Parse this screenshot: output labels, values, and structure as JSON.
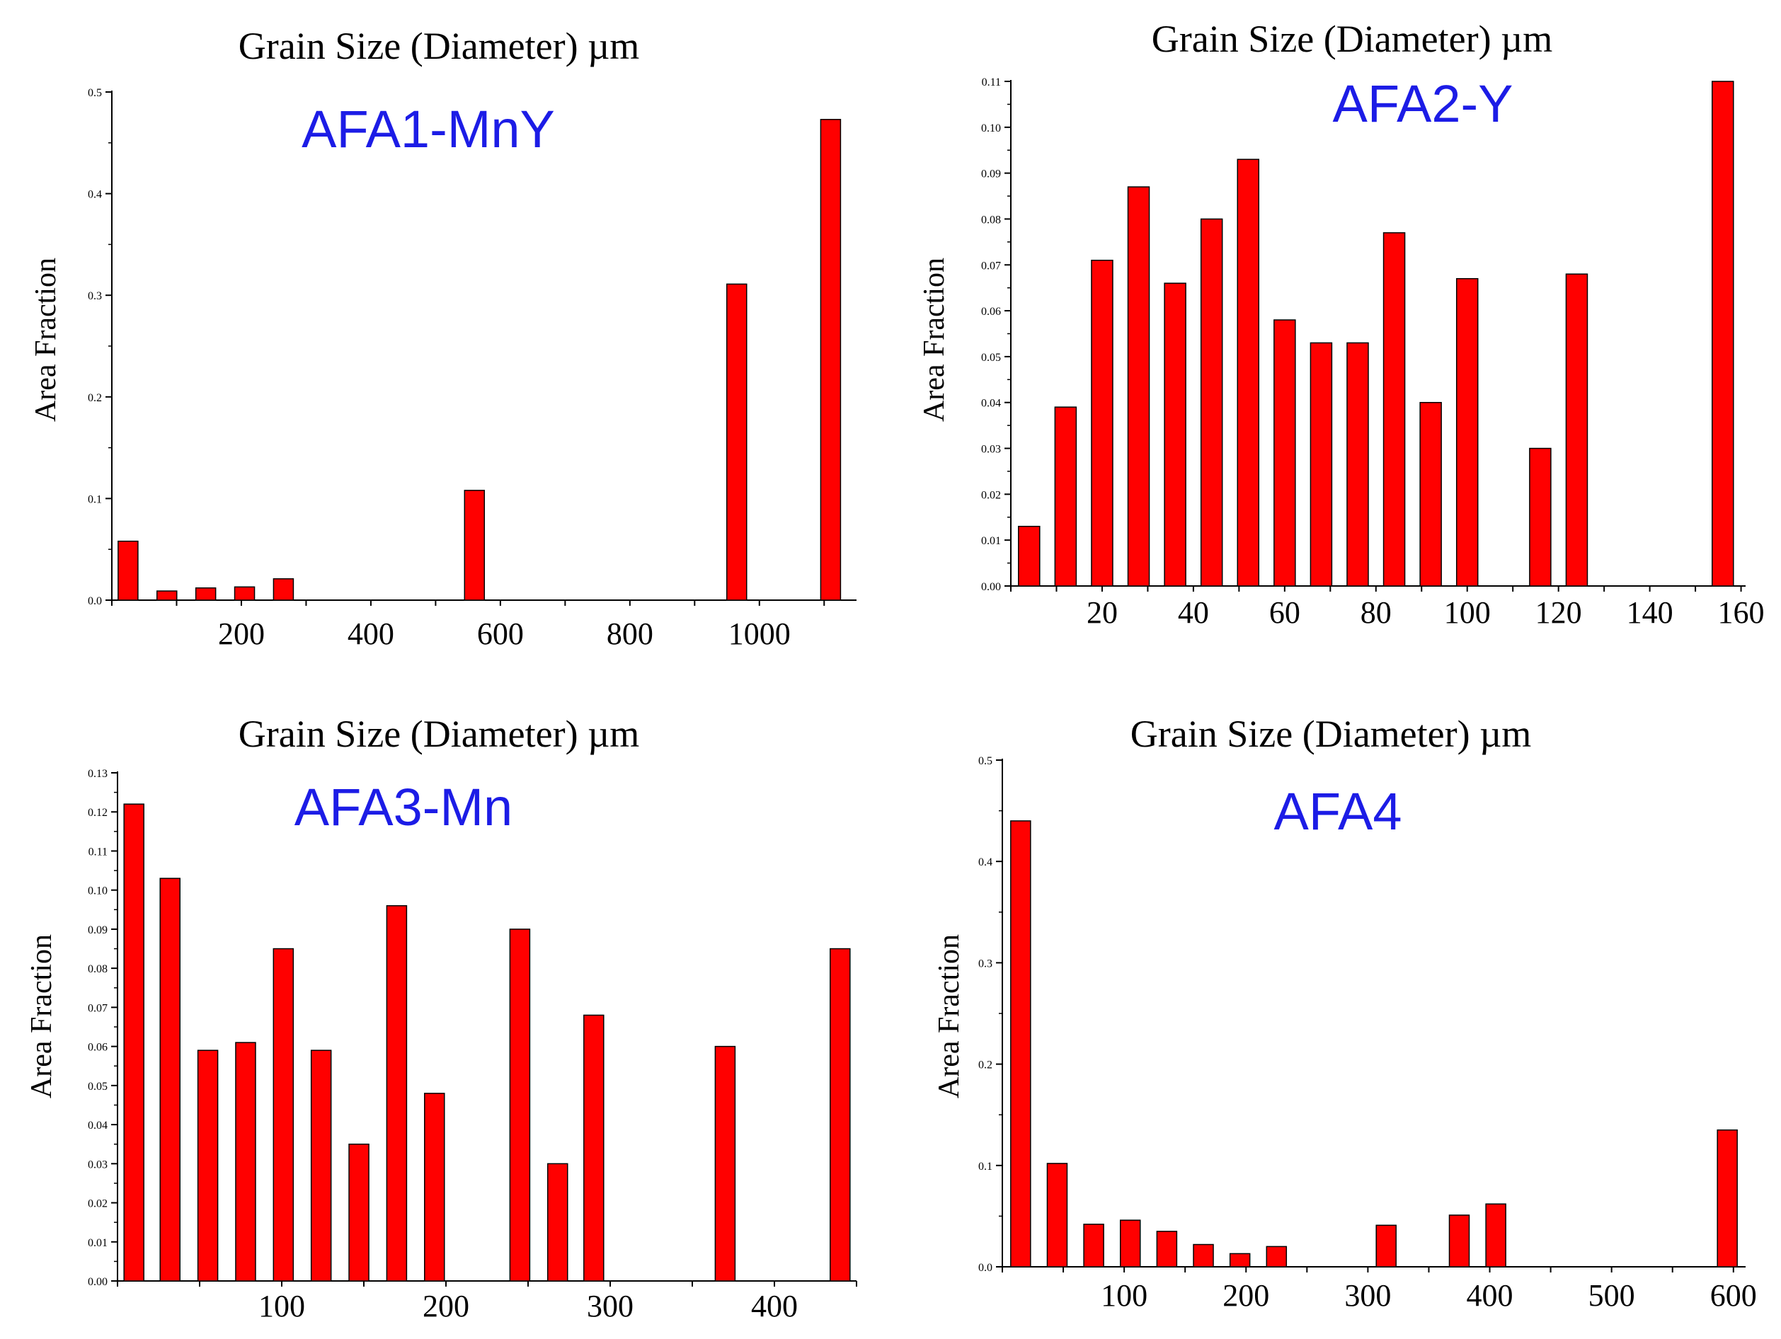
{
  "chart_data": [
    {
      "type": "bar",
      "sample": "AFA1-MnY",
      "title": "Grain Size (Diameter) µm",
      "xlabel": "Grain Size (Diameter) µm",
      "ylabel": "Area Fraction",
      "xlim": [
        0,
        1150
      ],
      "ylim": [
        0,
        0.5
      ],
      "x_ticks": [
        200,
        400,
        600,
        800,
        1000
      ],
      "y_ticks": [
        0.0,
        0.1,
        0.2,
        0.3,
        0.4,
        0.5
      ],
      "y_tick_labels": [
        "0.0",
        "0.1",
        "0.2",
        "0.3",
        "0.4",
        "0.5"
      ],
      "bar_color": "#ff0000",
      "x": [
        25,
        85,
        145,
        205,
        265,
        560,
        965,
        1110
      ],
      "values": [
        0.058,
        0.009,
        0.012,
        0.013,
        0.021,
        0.108,
        0.311,
        0.473
      ]
    },
    {
      "type": "bar",
      "sample": "AFA2-Y",
      "title": "Grain Size (Diameter) µm",
      "xlabel": "Grain Size (Diameter) µm",
      "ylabel": "Area Fraction",
      "xlim": [
        0,
        161
      ],
      "ylim": [
        0,
        0.11
      ],
      "x_ticks": [
        20,
        40,
        60,
        80,
        100,
        120,
        140,
        160
      ],
      "y_ticks": [
        0.0,
        0.01,
        0.02,
        0.03,
        0.04,
        0.05,
        0.06,
        0.07,
        0.08,
        0.09,
        0.1,
        0.11
      ],
      "y_tick_labels": [
        "0.00",
        "0.01",
        "0.02",
        "0.03",
        "0.04",
        "0.05",
        "0.06",
        "0.07",
        "0.08",
        "0.09",
        "0.10",
        "0.11"
      ],
      "bar_color": "#ff0000",
      "x": [
        4,
        12,
        20,
        28,
        36,
        44,
        52,
        60,
        68,
        76,
        84,
        92,
        100,
        116,
        124,
        156
      ],
      "values": [
        0.013,
        0.039,
        0.071,
        0.087,
        0.066,
        0.08,
        0.093,
        0.058,
        0.053,
        0.053,
        0.077,
        0.04,
        0.067,
        0.03,
        0.068,
        0.11
      ]
    },
    {
      "type": "bar",
      "sample": "AFA3-Mn",
      "title": "Grain Size (Diameter) µm",
      "xlabel": "Grain Size (Diameter) µm",
      "ylabel": "Area Fraction",
      "xlim": [
        0,
        450
      ],
      "ylim": [
        0,
        0.13
      ],
      "x_ticks": [
        100,
        200,
        300,
        400
      ],
      "y_ticks": [
        0.0,
        0.01,
        0.02,
        0.03,
        0.04,
        0.05,
        0.06,
        0.07,
        0.08,
        0.09,
        0.1,
        0.11,
        0.12,
        0.13
      ],
      "y_tick_labels": [
        "0.00",
        "0.01",
        "0.02",
        "0.03",
        "0.04",
        "0.05",
        "0.06",
        "0.07",
        "0.08",
        "0.09",
        "0.10",
        "0.11",
        "0.12",
        "0.13"
      ],
      "bar_color": "#ff0000",
      "x": [
        10,
        32,
        55,
        78,
        101,
        124,
        147,
        170,
        193,
        245,
        268,
        290,
        370,
        440
      ],
      "values": [
        0.122,
        0.103,
        0.059,
        0.061,
        0.085,
        0.059,
        0.035,
        0.096,
        0.048,
        0.09,
        0.03,
        0.068,
        0.06,
        0.085
      ]
    },
    {
      "type": "bar",
      "sample": "AFA4",
      "title": "Grain Size (Diameter) µm",
      "xlabel": "Grain Size (Diameter) µm",
      "ylabel": "Area Fraction",
      "xlim": [
        0,
        610
      ],
      "ylim": [
        0,
        0.5
      ],
      "x_ticks": [
        100,
        200,
        300,
        400,
        500,
        600
      ],
      "y_ticks": [
        0.0,
        0.1,
        0.2,
        0.3,
        0.4,
        0.5
      ],
      "y_tick_labels": [
        "0.0",
        "0.1",
        "0.2",
        "0.3",
        "0.4",
        "0.5"
      ],
      "bar_color": "#ff0000",
      "x": [
        15,
        45,
        75,
        105,
        135,
        165,
        195,
        225,
        315,
        375,
        405,
        595
      ],
      "values": [
        0.44,
        0.102,
        0.042,
        0.046,
        0.035,
        0.022,
        0.013,
        0.02,
        0.041,
        0.051,
        0.062,
        0.135
      ]
    }
  ]
}
